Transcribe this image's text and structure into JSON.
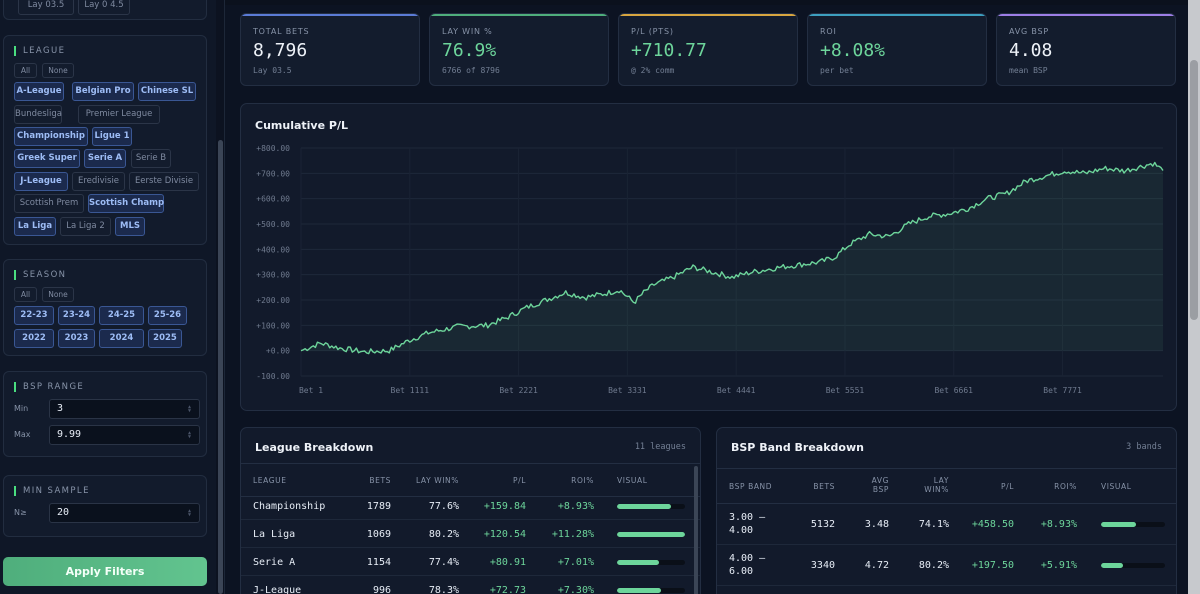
{
  "sidebar": {
    "top_chips": [
      "Lay 03.5",
      "Lay 0 4.5"
    ],
    "league": {
      "title": "LEAGUE",
      "all": "All",
      "none": "None",
      "chips": [
        {
          "label": "A-League",
          "on": true
        },
        {
          "label": "Belgian Pro",
          "on": true
        },
        {
          "label": "Chinese SL",
          "on": true
        },
        {
          "label": "Bundesliga",
          "on": false
        },
        {
          "label": "Premier League",
          "on": false
        },
        {
          "label": "Championship",
          "on": true
        },
        {
          "label": "Ligue 1",
          "on": true
        },
        {
          "label": "Greek Super",
          "on": true
        },
        {
          "label": "Serie A",
          "on": true
        },
        {
          "label": "Serie B",
          "on": false
        },
        {
          "label": "J-League",
          "on": true
        },
        {
          "label": "Eredivisie",
          "on": false
        },
        {
          "label": "Eerste Divisie",
          "on": false
        },
        {
          "label": "Scottish Prem",
          "on": false
        },
        {
          "label": "Scottish Champ",
          "on": true
        },
        {
          "label": "La Liga",
          "on": true
        },
        {
          "label": "La Liga 2",
          "on": false
        },
        {
          "label": "MLS",
          "on": true
        }
      ]
    },
    "season": {
      "title": "SEASON",
      "all": "All",
      "none": "None",
      "chips": [
        "22-23",
        "23-24",
        "24-25",
        "25-26",
        "2022",
        "2023",
        "2024",
        "2025"
      ]
    },
    "bsp": {
      "title": "BSP RANGE",
      "min_label": "Min",
      "min_value": "3",
      "max_label": "Max",
      "max_value": "9.99"
    },
    "min_sample": {
      "title": "MIN SAMPLE",
      "label": "N≥",
      "value": "20"
    },
    "apply_label": "Apply Filters"
  },
  "stats": [
    {
      "label": "TOTAL BETS",
      "value": "8,796",
      "sub": "Lay 03.5",
      "accent": "#5b7bd6",
      "green": false
    },
    {
      "label": "LAY WIN %",
      "value": "76.9%",
      "sub": "6766 of 8796",
      "accent": "#4fae7c",
      "green": true
    },
    {
      "label": "P/L (PTS)",
      "value": "+710.77",
      "sub": "@ 2% comm",
      "accent": "#d8a640",
      "green": true
    },
    {
      "label": "ROI",
      "value": "+8.08%",
      "sub": "per bet",
      "accent": "#3d9fbf",
      "green": true
    },
    {
      "label": "AVG BSP",
      "value": "4.08",
      "sub": "mean BSP",
      "accent": "#9d7ee6",
      "green": false
    }
  ],
  "chart_data": {
    "type": "line",
    "title": "Cumulative P/L",
    "ylim": [
      -100,
      800
    ],
    "yticks": [
      "+800.00",
      "+700.00",
      "+600.00",
      "+500.00",
      "+400.00",
      "+300.00",
      "+200.00",
      "+100.00",
      "+0.00",
      "-100.00"
    ],
    "xticks": [
      "Bet 1",
      "Bet 1111",
      "Bet 2221",
      "Bet 3331",
      "Bet 4441",
      "Bet 5551",
      "Bet 6661",
      "Bet 7771"
    ],
    "total_bets": 8796,
    "x": [
      1,
      200,
      400,
      650,
      900,
      1100,
      1300,
      1600,
      1900,
      2100,
      2300,
      2500,
      2700,
      2900,
      3100,
      3250,
      3400,
      3500,
      3600,
      3800,
      4000,
      4200,
      4400,
      4600,
      4900,
      5100,
      5300,
      5450,
      5600,
      5800,
      6000,
      6200,
      6400,
      6600,
      6800,
      7000,
      7200,
      7400,
      7600,
      7800,
      8000,
      8200,
      8400,
      8600,
      8700,
      8796
    ],
    "values": [
      0,
      30,
      10,
      -5,
      0,
      40,
      70,
      95,
      100,
      130,
      170,
      200,
      230,
      210,
      225,
      240,
      190,
      230,
      260,
      290,
      330,
      310,
      290,
      310,
      330,
      340,
      350,
      370,
      420,
      460,
      450,
      500,
      530,
      540,
      560,
      600,
      620,
      670,
      690,
      710,
      700,
      720,
      710,
      730,
      740,
      711
    ],
    "series_name": "Cumulative P/L",
    "line_color": "#6dd59b"
  },
  "league_table": {
    "title": "League Breakdown",
    "meta": "11 leagues",
    "columns": [
      "LEAGUE",
      "BETS",
      "LAY WIN%",
      "P/L",
      "ROI%",
      "VISUAL"
    ],
    "rows": [
      {
        "league": "Championship",
        "bets": "1789",
        "win": "77.6%",
        "pl": "+159.84",
        "roi": "+8.93%",
        "visual": 0.8
      },
      {
        "league": "La Liga",
        "bets": "1069",
        "win": "80.2%",
        "pl": "+120.54",
        "roi": "+11.28%",
        "visual": 1.0
      },
      {
        "league": "Serie A",
        "bets": "1154",
        "win": "77.4%",
        "pl": "+80.91",
        "roi": "+7.01%",
        "visual": 0.62
      },
      {
        "league": "J-League",
        "bets": "996",
        "win": "78.3%",
        "pl": "+72.73",
        "roi": "+7.30%",
        "visual": 0.65
      }
    ]
  },
  "bsp_table": {
    "title": "BSP Band Breakdown",
    "meta": "3 bands",
    "columns": [
      "BSP BAND",
      "BETS",
      "AVG BSP",
      "LAY WIN%",
      "P/L",
      "ROI%",
      "VISUAL"
    ],
    "rows": [
      {
        "band": "3.00 – 4.00",
        "bets": "5132",
        "avg": "3.48",
        "win": "74.1%",
        "pl": "+458.50",
        "roi": "+8.93%",
        "visual": 0.54
      },
      {
        "band": "4.00 – 6.00",
        "bets": "3340",
        "avg": "4.72",
        "win": "80.2%",
        "pl": "+197.50",
        "roi": "+5.91%",
        "visual": 0.35
      }
    ]
  }
}
